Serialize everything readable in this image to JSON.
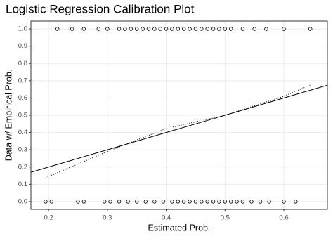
{
  "chart_data": {
    "type": "scatter",
    "title": "Logistic Regression Calibration Plot",
    "x_label": "Estimated Prob.",
    "y_label": "Data w/ Empirical Prob.",
    "xlim": [
      0.17,
      0.674
    ],
    "ylim": [
      -0.045,
      1.045
    ],
    "xticks": [
      0.2,
      0.3,
      0.4,
      0.5,
      0.6
    ],
    "yticks": [
      {
        "value": 0,
        "label": "0.0"
      },
      0.1,
      0.2,
      0.3,
      0.4,
      0.5,
      0.6,
      0.7,
      0.8,
      0.9,
      {
        "value": 1,
        "label": "1.0"
      }
    ],
    "grid": true,
    "series": [
      {
        "kind": "points",
        "color": "#000000",
        "x": [
          0.215,
          0.24,
          0.26,
          0.285,
          0.3,
          0.32,
          0.33,
          0.34,
          0.35,
          0.36,
          0.37,
          0.38,
          0.39,
          0.4,
          0.41,
          0.42,
          0.43,
          0.44,
          0.45,
          0.46,
          0.47,
          0.48,
          0.49,
          0.5,
          0.51,
          0.53,
          0.55,
          0.57,
          0.6,
          0.645
        ],
        "values": [
          1,
          1,
          1,
          1,
          1,
          1,
          1,
          1,
          1,
          1,
          1,
          1,
          1,
          1,
          1,
          1,
          1,
          1,
          1,
          1,
          1,
          1,
          1,
          1,
          1,
          1,
          1,
          1,
          1,
          1
        ]
      },
      {
        "kind": "points",
        "color": "#000000",
        "x": [
          0.195,
          0.205,
          0.25,
          0.26,
          0.295,
          0.305,
          0.32,
          0.335,
          0.35,
          0.365,
          0.38,
          0.395,
          0.41,
          0.42,
          0.43,
          0.44,
          0.45,
          0.46,
          0.47,
          0.48,
          0.49,
          0.5,
          0.51,
          0.52,
          0.53,
          0.545,
          0.56,
          0.575,
          0.6,
          0.62
        ],
        "values": [
          0,
          0,
          0,
          0,
          0,
          0,
          0,
          0,
          0,
          0,
          0,
          0,
          0,
          0,
          0,
          0,
          0,
          0,
          0,
          0,
          0,
          0,
          0,
          0,
          0,
          0,
          0,
          0,
          0,
          0
        ]
      },
      {
        "kind": "line",
        "dash": "solid",
        "color": "#000000",
        "x": [
          0.17,
          0.674
        ],
        "values": [
          0.17,
          0.674
        ]
      },
      {
        "kind": "line",
        "dash": "dotted",
        "color": "#000000",
        "x": [
          0.195,
          0.3,
          0.4,
          0.5,
          0.6,
          0.645
        ],
        "values": [
          0.138,
          0.29,
          0.423,
          0.5,
          0.61,
          0.675
        ]
      }
    ]
  }
}
